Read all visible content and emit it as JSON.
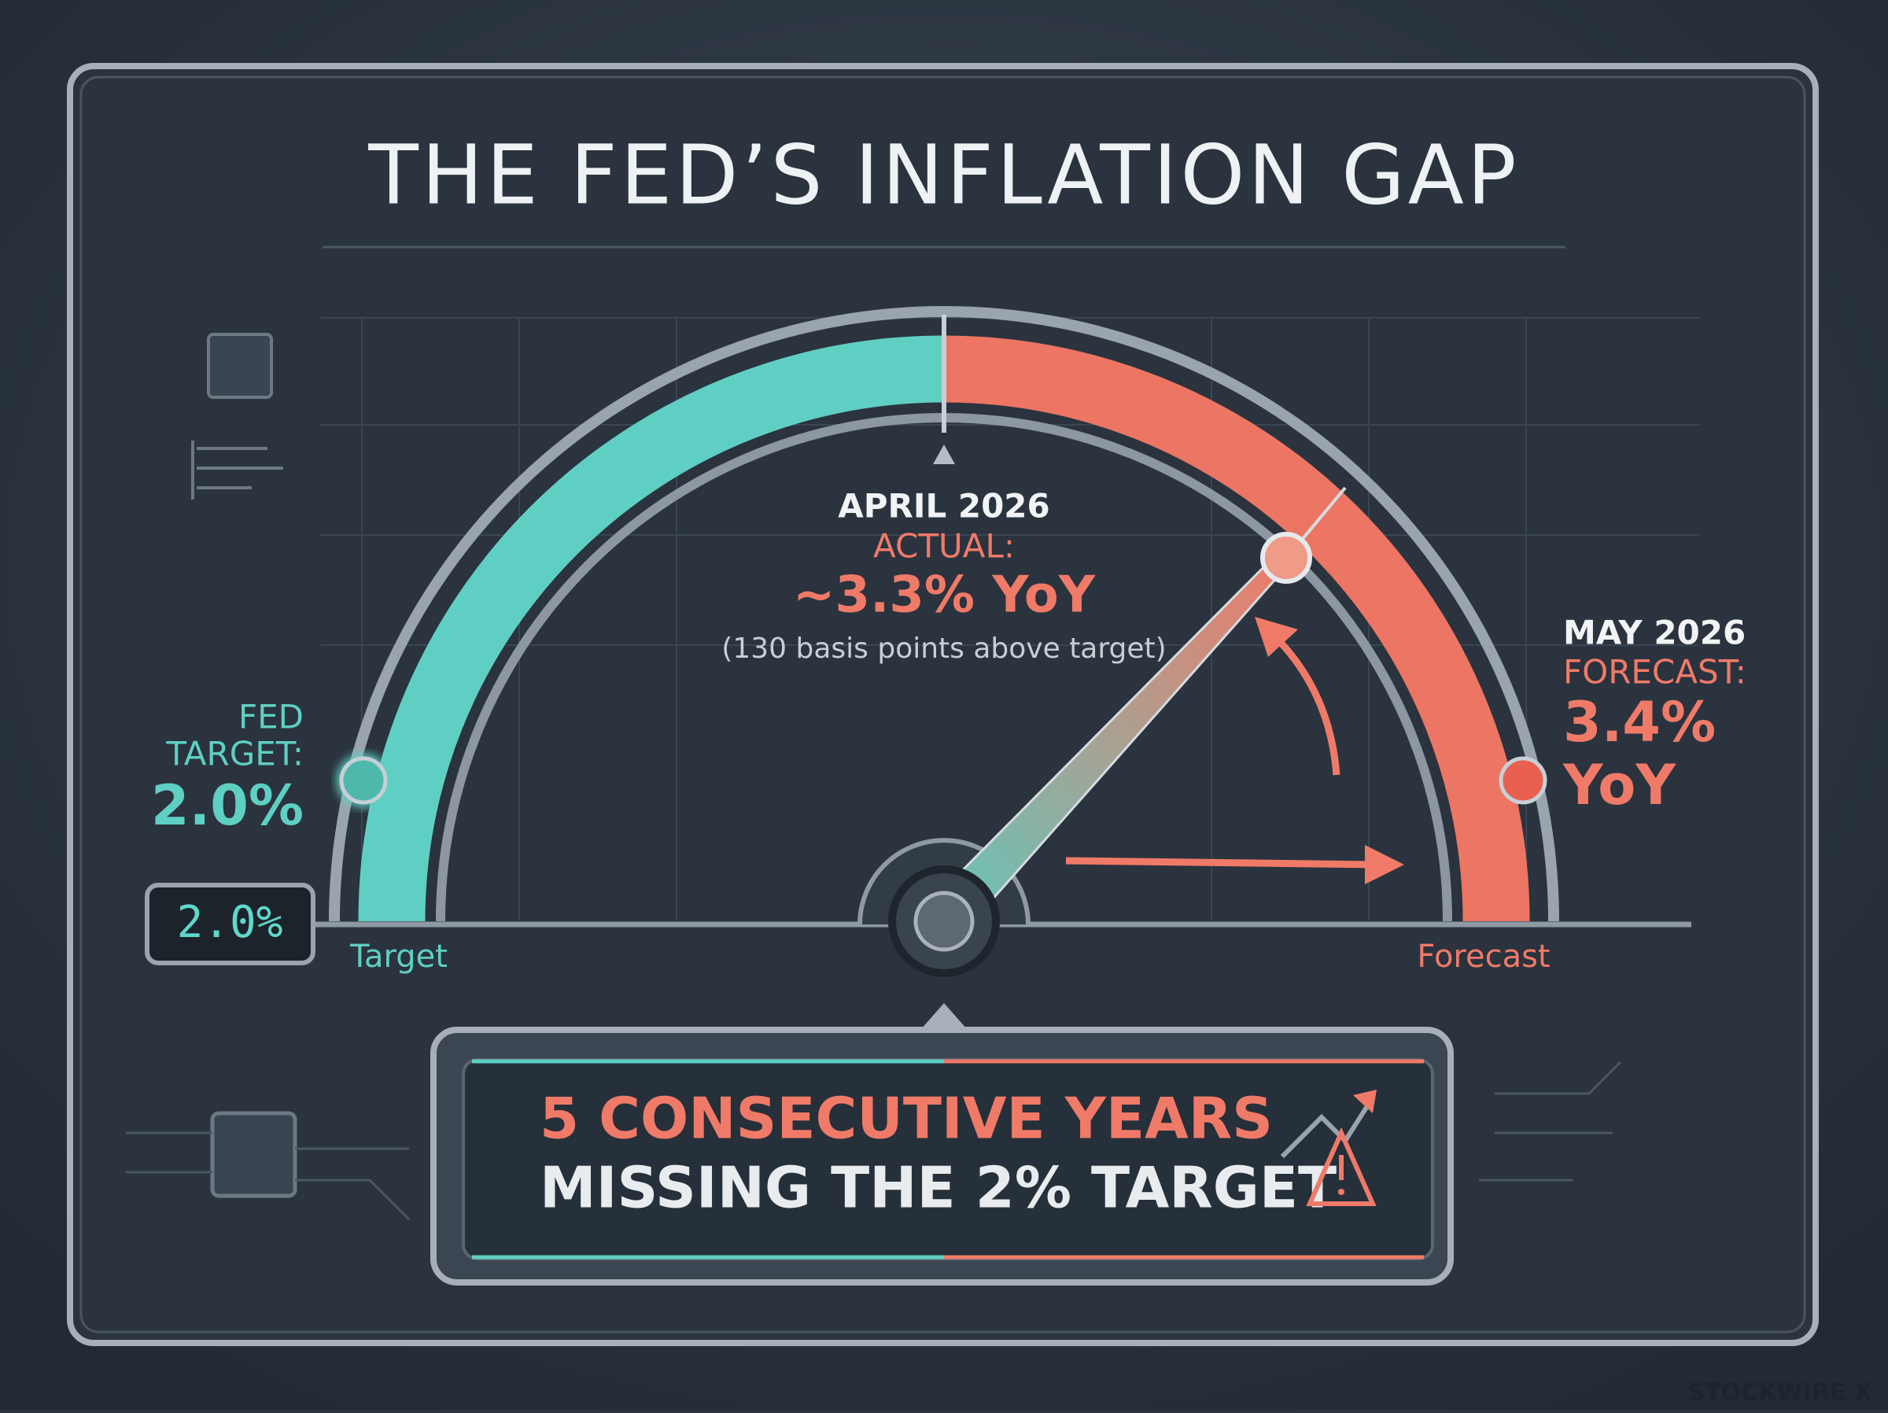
{
  "header": {
    "title": "THE FED’S INFLATION GAP"
  },
  "actual": {
    "month": "APRIL 2026",
    "label": "ACTUAL:",
    "value": "~3.3% YoY",
    "note": "(130 basis points above target)"
  },
  "target": {
    "line1": "FED",
    "line2": "TARGET:",
    "value": "2.0%",
    "display": "2.0%",
    "axis_label": "Target"
  },
  "forecast": {
    "month": "MAY 2026",
    "label": "FORECAST:",
    "value": "3.4%",
    "unit": "YoY",
    "axis_label": "Forecast"
  },
  "banner": {
    "line1": "5 CONSECUTIVE YEARS",
    "line2": "MISSING THE 2% TARGET"
  },
  "footer": {
    "watermark": "STOCKWIRE X"
  }
}
